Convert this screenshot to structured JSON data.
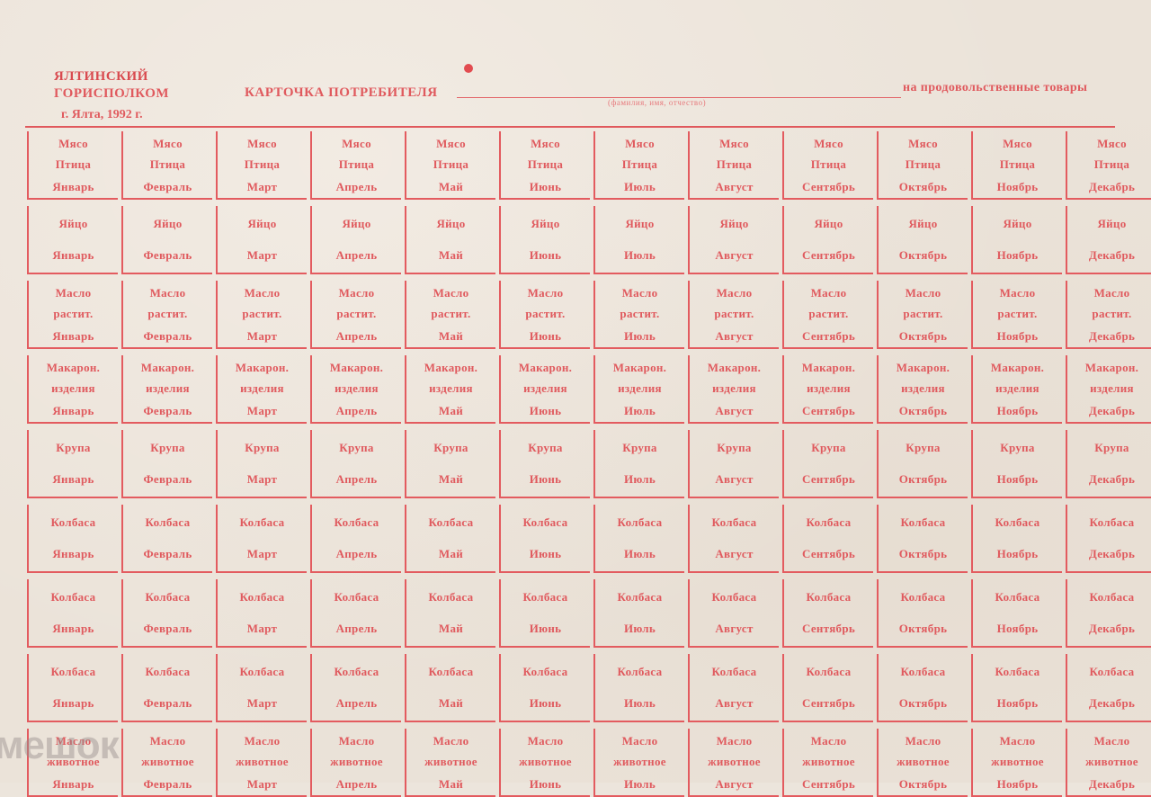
{
  "header": {
    "issuer_line1": "ЯЛТИНСКИЙ",
    "issuer_line2": "ГОРИСПОЛКОМ",
    "issuer_line3": "г. Ялта, 1992 г.",
    "title": "КАРТОЧКА ПОТРЕБИТЕЛЯ",
    "name_hint": "(фамилия, имя, отчество)",
    "goods": "на продовольственные товары"
  },
  "months": [
    "Январь",
    "Февраль",
    "Март",
    "Апрель",
    "Май",
    "Июнь",
    "Июль",
    "Август",
    "Сентябрь",
    "Октябрь",
    "Ноябрь",
    "Декабрь"
  ],
  "rows": [
    {
      "product": [
        "Мясо",
        "Птица"
      ]
    },
    {
      "product": [
        "Яйцо"
      ]
    },
    {
      "product": [
        "Масло",
        "растит."
      ]
    },
    {
      "product": [
        "Макарон.",
        "изделия"
      ]
    },
    {
      "product": [
        "Крупа"
      ]
    },
    {
      "product": [
        "Колбаса"
      ]
    },
    {
      "product": [
        "Колбаса"
      ]
    },
    {
      "product": [
        "Колбаса"
      ]
    },
    {
      "product": [
        "Масло",
        "животное"
      ]
    }
  ],
  "watermark": "мешок",
  "colors": {
    "ink": "#e05a5e",
    "paper": "#ebe3d9"
  }
}
